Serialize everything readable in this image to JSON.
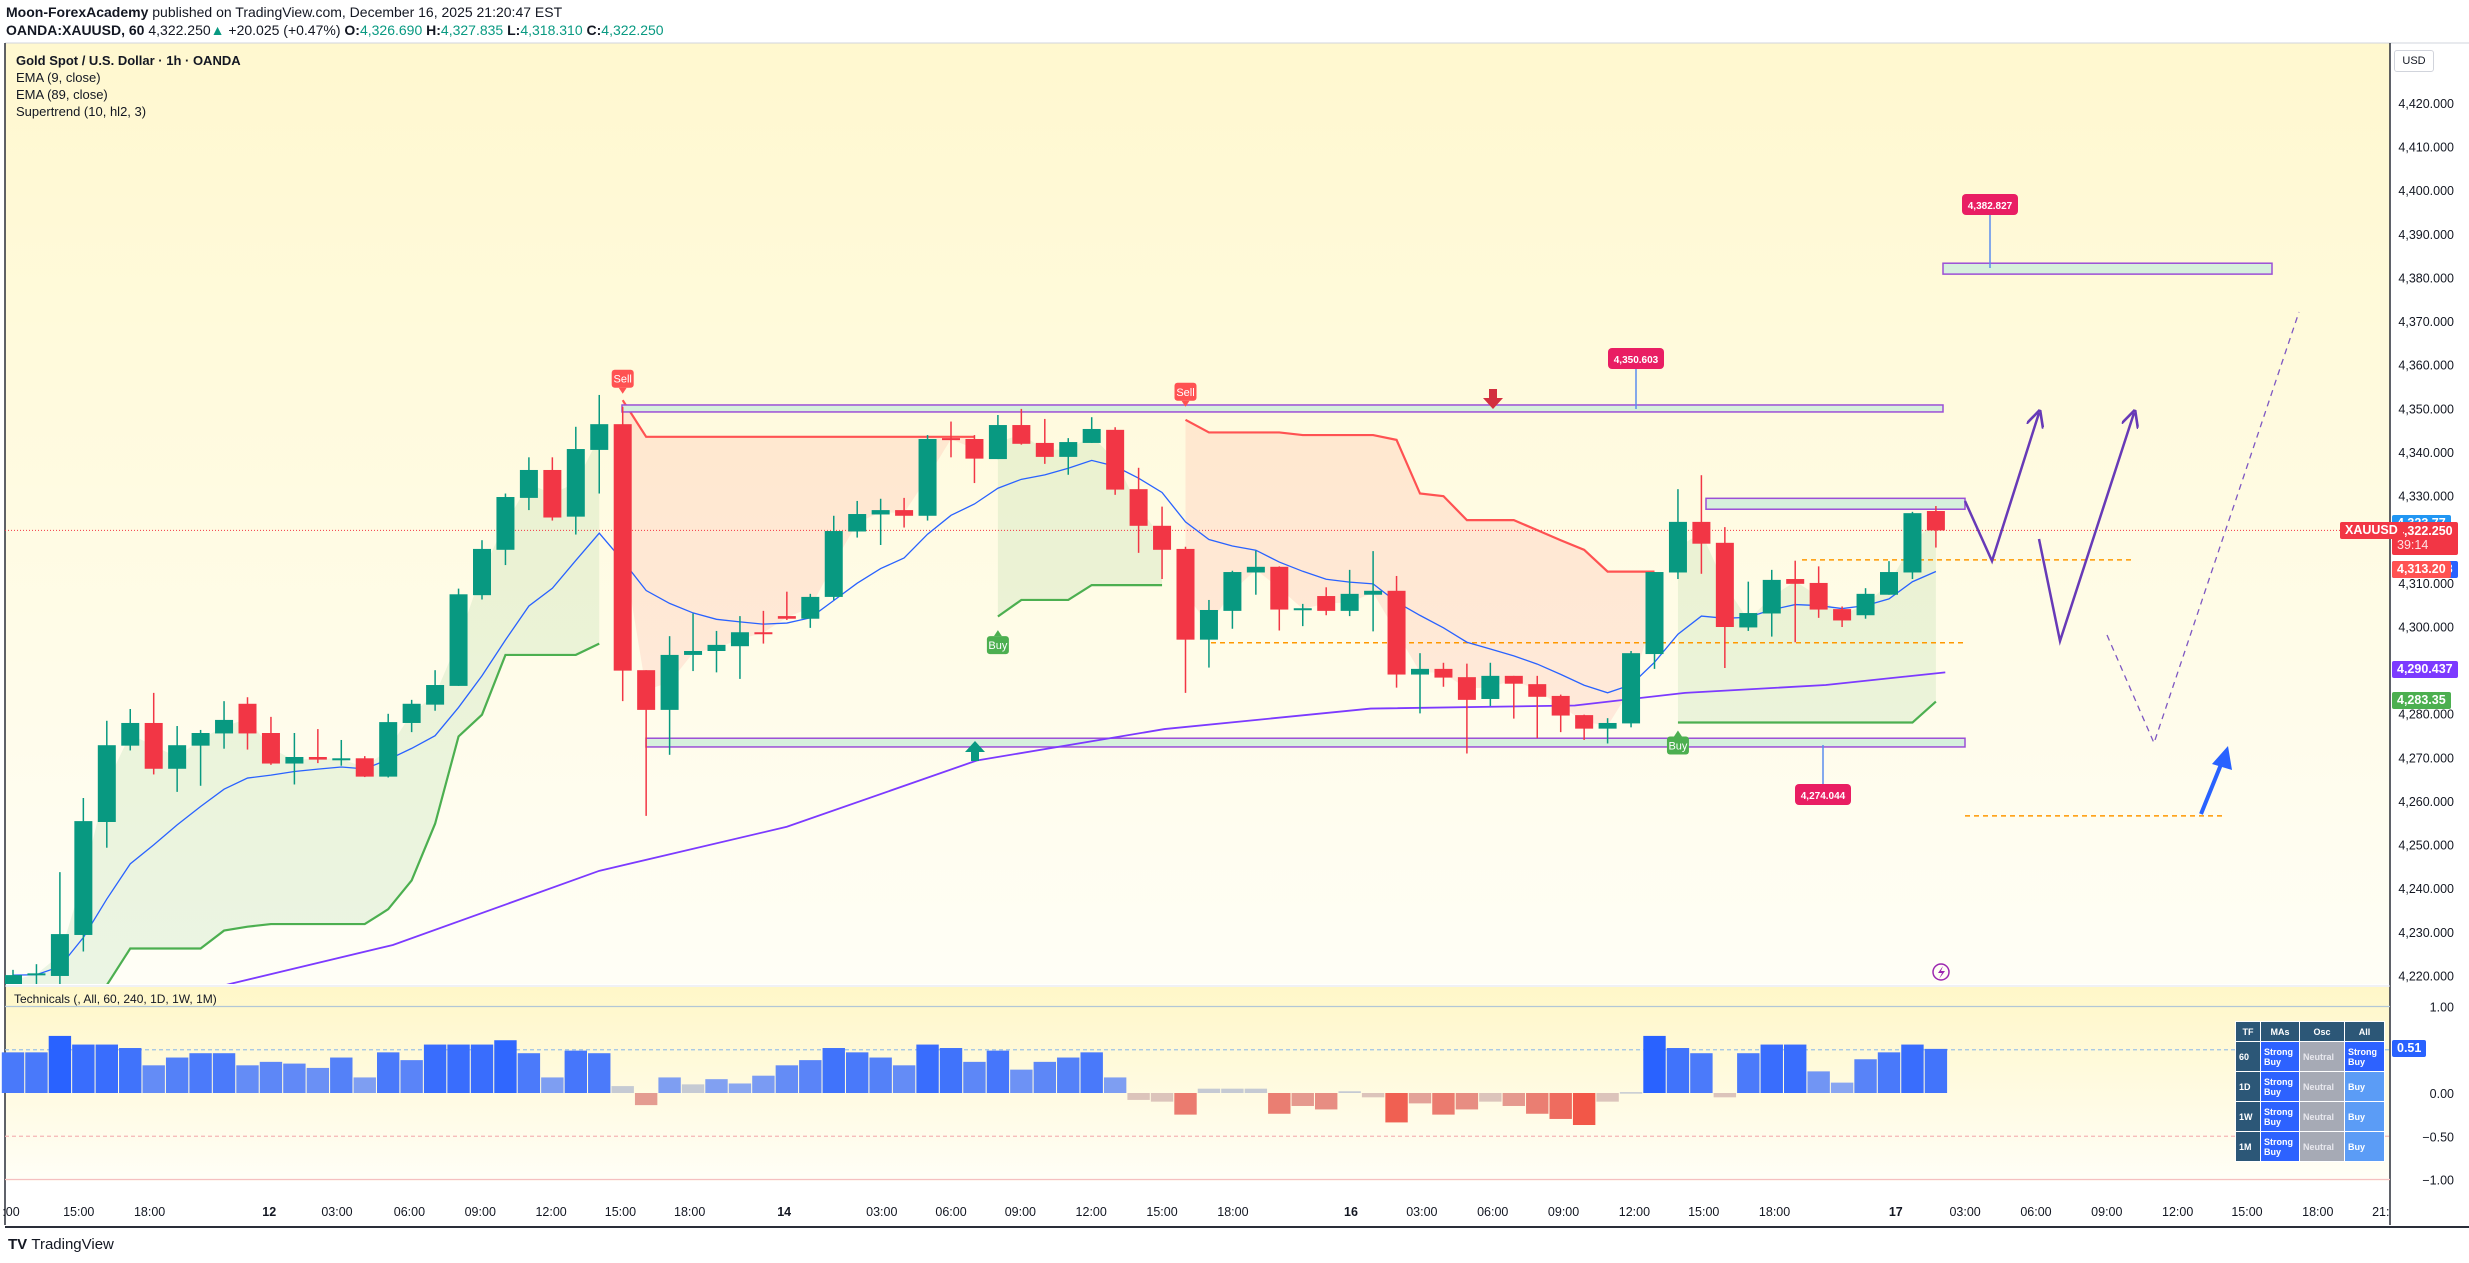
{
  "header": {
    "author": "Moon-ForexAcademy",
    "published": " published on TradingView.com, December 16, 2025 21:20:47 EST",
    "symbol": "OANDA:XAUUSD, 60",
    "last": "4,322.250",
    "change_arrow": "▲",
    "change": "+20.025 (+0.47%)",
    "o_label": "O:",
    "o": "4,326.690",
    "h_label": "H:",
    "h": "4,327.835",
    "l_label": "L:",
    "l": "4,318.310",
    "c_label": "C:",
    "c": "4,322.250"
  },
  "legend": {
    "title": "Gold Spot / U.S. Dollar · 1h · OANDA",
    "ema9": "EMA (9, close)",
    "ema89": "EMA (89, close)",
    "supertrend": "Supertrend (10, hl2, 3)"
  },
  "price_axis": {
    "currency": "USD",
    "ticks": [
      "4,220.000",
      "4,230.000",
      "4,240.000",
      "4,250.000",
      "4,260.000",
      "4,270.000",
      "4,280.000",
      "4,290.000",
      "4,300.000",
      "4,310.000",
      "4,320.000",
      "4,330.000",
      "4,340.000",
      "4,350.000",
      "4,360.000",
      "4,370.000",
      "4,380.000",
      "4,390.000",
      "4,400.000",
      "4,410.000",
      "4,420.000"
    ],
    "badges": [
      {
        "text": "4,323.77",
        "price": 4323.77,
        "color": "#2196f3"
      },
      {
        "text": "4,313.228",
        "price": 4313.228,
        "color": "#2962ff"
      },
      {
        "text": "4,313.20",
        "price": 4313.2,
        "color": "#ff5252"
      },
      {
        "text": "4,290.437",
        "price": 4290.437,
        "color": "#7c3aff"
      },
      {
        "text": "4,283.35",
        "price": 4283.35,
        "color": "#4caf50"
      }
    ],
    "current": {
      "symbol": "XAUUSD",
      "price_text": "4,322.250",
      "price": 4322.25,
      "countdown": "39:14",
      "color": "#f23645"
    }
  },
  "time_axis": {
    "ticks": [
      ":00",
      "15:00",
      "18:00",
      "12",
      "03:00",
      "06:00",
      "09:00",
      "12:00",
      "15:00",
      "18:00",
      "14",
      "03:00",
      "06:00",
      "09:00",
      "12:00",
      "15:00",
      "18:00",
      "16",
      "03:00",
      "06:00",
      "09:00",
      "12:00",
      "15:00",
      "18:00",
      "17",
      "03:00",
      "06:00",
      "09:00",
      "12:00",
      "15:00",
      "18:00",
      "21:"
    ]
  },
  "chart_data": [
    {
      "type": "candlestick",
      "title": "Gold Spot / U.S. Dollar · 1h · OANDA",
      "ylim": [
        4218,
        4434
      ],
      "colors": {
        "up": "#089981",
        "down": "#f23645",
        "ema9": "#2962ff",
        "ema89": "#7c3aff",
        "st_up": "#4caf50",
        "st_down": "#ff5252"
      },
      "ohlc": [
        [
          4218,
          4221.5,
          4217,
          4220.3
        ],
        [
          4220.3,
          4222.8,
          4218,
          4220.7
        ],
        [
          4220.1,
          4243.9,
          4218,
          4229.7
        ],
        [
          4229.5,
          4260.9,
          4225.7,
          4255.6
        ],
        [
          4255.4,
          4278.6,
          4249.5,
          4273.0
        ],
        [
          4272.9,
          4281.3,
          4271.8,
          4278.1
        ],
        [
          4278.1,
          4285,
          4266.3,
          4267.6
        ],
        [
          4267.6,
          4277.4,
          4262.3,
          4273.0
        ],
        [
          4272.9,
          4276.5,
          4263.7,
          4275.8
        ],
        [
          4275.7,
          4283.1,
          4272.2,
          4278.8
        ],
        [
          4282.5,
          4284,
          4272,
          4275.7
        ],
        [
          4275.8,
          4279.5,
          4268.5,
          4268.8
        ],
        [
          4268.8,
          4275.8,
          4264,
          4270.3
        ],
        [
          4270.3,
          4276.7,
          4268.9,
          4269.7
        ],
        [
          4269.7,
          4274.2,
          4268.3,
          4270.0
        ],
        [
          4270.0,
          4270.5,
          4265.7,
          4265.8
        ],
        [
          4265.8,
          4280.2,
          4265.6,
          4278.3
        ],
        [
          4278.1,
          4283.4,
          4276,
          4282.5
        ],
        [
          4282.3,
          4290.2,
          4280.9,
          4286.8
        ],
        [
          4286.6,
          4308.9,
          4286.6,
          4307.6
        ],
        [
          4307.4,
          4320,
          4306.4,
          4318.0
        ],
        [
          4317.8,
          4330.7,
          4314.3,
          4329.9
        ],
        [
          4329.7,
          4339,
          4326.9,
          4336.1
        ],
        [
          4336.1,
          4339,
          4324.5,
          4325.2
        ],
        [
          4325.4,
          4346,
          4321.3,
          4340.9
        ],
        [
          4340.7,
          4353.3,
          4330.7,
          4346.6
        ],
        [
          4346.6,
          4350.6,
          4283.1,
          4290.1
        ],
        [
          4290.2,
          4290.2,
          4256.8,
          4281.1
        ],
        [
          4281.1,
          4298,
          4270.8,
          4293.7
        ],
        [
          4293.7,
          4303.2,
          4290.0,
          4294.6
        ],
        [
          4294.6,
          4299.2,
          4289.7,
          4296.0
        ],
        [
          4295.7,
          4302.6,
          4288.2,
          4298.9
        ],
        [
          4298.9,
          4303.8,
          4296.3,
          4298.7
        ],
        [
          4302.6,
          4308.2,
          4301.7,
          4302.0
        ],
        [
          4302.0,
          4307.7,
          4299.9,
          4307.0
        ],
        [
          4307.0,
          4325.6,
          4306.3,
          4322.1
        ],
        [
          4322.0,
          4329.0,
          4320.6,
          4326.0
        ],
        [
          4325.9,
          4329.5,
          4318.9,
          4326.9
        ],
        [
          4326.9,
          4329.7,
          4322.9,
          4325.6
        ],
        [
          4325.6,
          4344.1,
          4324.5,
          4343.2
        ],
        [
          4343.4,
          4347.2,
          4339.0,
          4343.0
        ],
        [
          4343.2,
          4344.1,
          4333.1,
          4338.7
        ],
        [
          4338.6,
          4348.7,
          4338.6,
          4346.4
        ],
        [
          4346.4,
          4350.1,
          4341.9,
          4342.1
        ],
        [
          4342.3,
          4347.8,
          4337.5,
          4339.1
        ],
        [
          4339.1,
          4343.4,
          4335.0,
          4342.5
        ],
        [
          4342.3,
          4348.2,
          4342.3,
          4345.5
        ],
        [
          4345.3,
          4345.9,
          4330.4,
          4331.6
        ],
        [
          4331.7,
          4336.6,
          4317.1,
          4323.3
        ],
        [
          4323.3,
          4327.7,
          4311.1,
          4317.8
        ],
        [
          4318.0,
          4318.5,
          4285.0,
          4297.2
        ],
        [
          4297.2,
          4306.3,
          4290.8,
          4304.0
        ],
        [
          4303.8,
          4313.0,
          4299.7,
          4312.7
        ],
        [
          4312.6,
          4317.6,
          4307.5,
          4313.9
        ],
        [
          4313.9,
          4314,
          4299.3,
          4304.1
        ],
        [
          4304.1,
          4305.4,
          4300.3,
          4304.4
        ],
        [
          4307.2,
          4309.2,
          4302.8,
          4303.8
        ],
        [
          4303.8,
          4313.2,
          4302.6,
          4307.7
        ],
        [
          4307.5,
          4317.5,
          4299.1,
          4308.4
        ],
        [
          4308.4,
          4311.8,
          4286.2,
          4289.2
        ],
        [
          4289.2,
          4294.1,
          4280.3,
          4290.5
        ],
        [
          4290.5,
          4291.9,
          4286.4,
          4288.5
        ],
        [
          4288.6,
          4291.7,
          4271.1,
          4283.4
        ],
        [
          4283.6,
          4291.9,
          4282.0,
          4288.9
        ],
        [
          4288.9,
          4288.9,
          4279.1,
          4287.1
        ],
        [
          4287.0,
          4288.9,
          4274.6,
          4284.1
        ],
        [
          4284.3,
          4284.6,
          4276.0,
          4279.8
        ],
        [
          4279.9,
          4280,
          4274.2,
          4276.8
        ],
        [
          4276.8,
          4279.2,
          4273.4,
          4278.1
        ],
        [
          4278.0,
          4294.6,
          4277.1,
          4294.1
        ],
        [
          4293.9,
          4312.7,
          4290.5,
          4312.7
        ],
        [
          4312.6,
          4331.7,
          4311.1,
          4324.2
        ],
        [
          4324.2,
          4334.9,
          4312.3,
          4319.2
        ],
        [
          4319.4,
          4323.0,
          4290.7,
          4300.1
        ],
        [
          4300.0,
          4310.5,
          4299.2,
          4303.3
        ],
        [
          4303.2,
          4313.2,
          4297.9,
          4310.9
        ],
        [
          4311.1,
          4315.3,
          4296.6,
          4310.0
        ],
        [
          4310.2,
          4314.0,
          4302.2,
          4304.1
        ],
        [
          4304.2,
          4304.8,
          4300.1,
          4301.6
        ],
        [
          4302.8,
          4309.0,
          4302.0,
          4307.7
        ],
        [
          4307.5,
          4315.2,
          4307.5,
          4312.7
        ],
        [
          4312.6,
          4326.5,
          4311.1,
          4326.2
        ],
        [
          4326.69,
          4327.835,
          4318.31,
          4322.25
        ]
      ],
      "ema89_points": [
        [
          5,
          4212
        ],
        [
          9.2,
          4218.2
        ],
        [
          16.2,
          4227.2
        ],
        [
          25,
          4244.2
        ],
        [
          33,
          4254.3
        ],
        [
          41.1,
          4269.5
        ],
        [
          49.1,
          4276.7
        ],
        [
          57.9,
          4281.4
        ],
        [
          66.6,
          4282.1
        ],
        [
          71.3,
          4285
        ],
        [
          77.3,
          4286.8
        ],
        [
          82.4,
          4289.7
        ]
      ],
      "supertrend": [
        4212,
        4214,
        4216,
        4218,
        4218,
        4226.4,
        4226.4,
        4226.4,
        4226.4,
        4230.5,
        4231.4,
        4232,
        4232,
        4232,
        4232,
        4232,
        4235.4,
        4242,
        4255,
        4275,
        4280,
        4293.7,
        4293.7,
        4293.7,
        4293.7,
        4296.3,
        4352.1,
        4343.7,
        4343.7,
        4343.7,
        4343.7,
        4343.7,
        4343.7,
        4343.7,
        4343.7,
        4343.7,
        4343.7,
        4343.7,
        4343.7,
        4343.7,
        4343.7,
        4343.7,
        4302.5,
        4306.3,
        4306.3,
        4306.3,
        4309.7,
        4309.7,
        4309.7,
        4309.7,
        4347.6,
        4344.7,
        4344.7,
        4344.7,
        4344.7,
        4344.1,
        4344.1,
        4344.1,
        4344.1,
        4343.0,
        4330.7,
        4330.1,
        4324.6,
        4324.6,
        4324.6,
        4322.3,
        4320,
        4317.8,
        4312.8,
        4312.8,
        4312.8,
        4278.2,
        4278.2,
        4278.2,
        4278.2,
        4278.2,
        4278.2,
        4278.2,
        4278.2,
        4278.2,
        4278.2,
        4278.2,
        4283.0
      ],
      "supertrend_direction": [
        "up",
        "up",
        "up",
        "up",
        "up",
        "up",
        "up",
        "up",
        "up",
        "up",
        "up",
        "up",
        "up",
        "up",
        "up",
        "up",
        "up",
        "up",
        "up",
        "up",
        "up",
        "up",
        "up",
        "up",
        "up",
        "up",
        "down",
        "down",
        "down",
        "down",
        "down",
        "down",
        "down",
        "down",
        "down",
        "down",
        "down",
        "down",
        "down",
        "down",
        "down",
        "down",
        "up",
        "up",
        "up",
        "up",
        "up",
        "up",
        "up",
        "up",
        "down",
        "down",
        "down",
        "down",
        "down",
        "down",
        "down",
        "down",
        "down",
        "down",
        "down",
        "down",
        "down",
        "down",
        "down",
        "down",
        "down",
        "down",
        "down",
        "down",
        "down",
        "up",
        "up",
        "up",
        "up",
        "up",
        "up",
        "up",
        "up",
        "up",
        "up",
        "up",
        "up"
      ],
      "signals": [
        {
          "bar": 26,
          "type": "Sell",
          "price": 4354.5
        },
        {
          "bar": 42,
          "type": "Buy",
          "price": 4298
        },
        {
          "bar": 50,
          "type": "Sell",
          "price": 4351.5
        },
        {
          "bar": 71,
          "type": "Buy",
          "price": 4275
        }
      ]
    },
    {
      "type": "bar",
      "title": "Technicals (, All, 60, 240, 1D, 1W, 1M)",
      "ylim": [
        -1.0,
        1.0
      ],
      "yticks": [
        "1.00",
        "0.00",
        "−0.50",
        "−1.00"
      ],
      "last_value": "0.51",
      "values": [
        0.47,
        0.47,
        0.66,
        0.56,
        0.56,
        0.52,
        0.32,
        0.41,
        0.46,
        0.46,
        0.32,
        0.36,
        0.34,
        0.29,
        0.41,
        0.18,
        0.47,
        0.38,
        0.56,
        0.56,
        0.56,
        0.61,
        0.46,
        0.18,
        0.49,
        0.46,
        0.08,
        -0.14,
        0.18,
        0.1,
        0.16,
        0.11,
        0.2,
        0.32,
        0.38,
        0.52,
        0.47,
        0.41,
        0.32,
        0.56,
        0.52,
        0.36,
        0.49,
        0.27,
        0.36,
        0.41,
        0.47,
        0.18,
        -0.08,
        -0.1,
        -0.25,
        0.05,
        0.05,
        0.05,
        -0.24,
        -0.15,
        -0.19,
        0.02,
        -0.05,
        -0.34,
        -0.12,
        -0.25,
        -0.19,
        -0.1,
        -0.15,
        -0.24,
        -0.3,
        -0.37,
        -0.1,
        0.01,
        0.66,
        0.52,
        0.46,
        -0.05,
        0.46,
        0.56,
        0.56,
        0.25,
        0.12,
        0.39,
        0.47,
        0.56,
        0.51
      ]
    }
  ],
  "drawings": {
    "zones": [
      {
        "name": "resistance-zone",
        "low": 4349.4,
        "high": 4351.0,
        "label": "4,350.603"
      },
      {
        "name": "support-zone",
        "low": 4272.6,
        "high": 4274.6,
        "label": "4,274.044"
      },
      {
        "name": "mid-zone",
        "low": 4327.1,
        "high": 4329.6
      },
      {
        "name": "target-zone",
        "low": 4381.0,
        "high": 4383.5,
        "label": "4,382.827"
      }
    ],
    "dashed_levels": [
      4296.5,
      4315.5,
      4256.8
    ],
    "colors": {
      "zone_border": "#9c4fd6",
      "zone_fill": "#d6f0dd",
      "label_bg": "#e91e63",
      "dashed": "#ff9800",
      "projection": "#673ab7",
      "blue_arrow": "#2962ff"
    }
  },
  "technicals_table": {
    "headers": [
      "TF",
      "MAs",
      "Osc",
      "All"
    ],
    "rows": [
      {
        "tf": "60",
        "mas": "Strong Buy",
        "osc": "Neutral",
        "all": "Strong Buy"
      },
      {
        "tf": "1D",
        "mas": "Strong Buy",
        "osc": "Neutral",
        "all": "Buy"
      },
      {
        "tf": "1W",
        "mas": "Strong Buy",
        "osc": "Neutral",
        "all": "Buy"
      },
      {
        "tf": "1M",
        "mas": "Strong Buy",
        "osc": "Neutral",
        "all": "Buy"
      }
    ]
  },
  "footer": {
    "brand": "TradingView",
    "logo": "TV"
  }
}
